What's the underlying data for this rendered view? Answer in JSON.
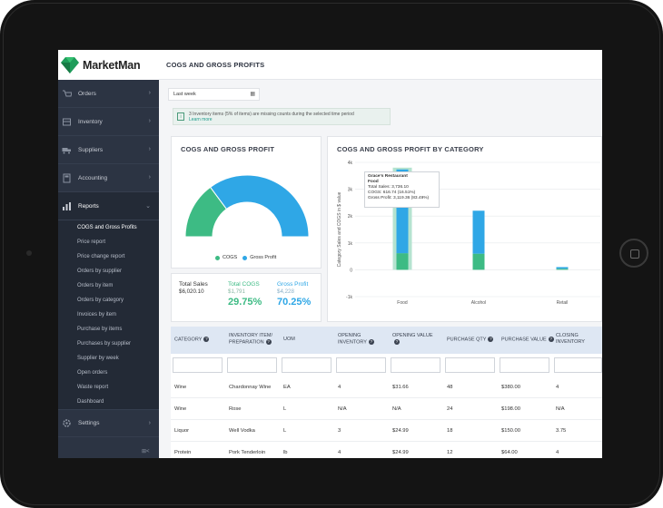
{
  "app": {
    "brand": "MarketMan",
    "page_title": "COGS AND GROSS PROFITS"
  },
  "colors": {
    "accent_green": "#3dbb84",
    "accent_blue": "#2fa7e6",
    "sidebar_bg": "#2c3443"
  },
  "sidebar": {
    "items": [
      {
        "label": "Orders",
        "icon": "orders-icon"
      },
      {
        "label": "Inventory",
        "icon": "inventory-icon"
      },
      {
        "label": "Suppliers",
        "icon": "truck-icon"
      },
      {
        "label": "Accounting",
        "icon": "calculator-icon"
      },
      {
        "label": "Reports",
        "icon": "bar-chart-icon"
      }
    ],
    "reports_sub": [
      "COGS and Gross Profits",
      "Price report",
      "Price change report",
      "Orders by supplier",
      "Orders by item",
      "Orders by category",
      "Invoices by item",
      "Purchase by items",
      "Purchases by supplier",
      "Supplier by week",
      "Open orders",
      "Waste report",
      "Dashboard"
    ],
    "settings_label": "Settings",
    "collapse_label": "⊞<"
  },
  "filters": {
    "date_range": "Last week"
  },
  "alert": {
    "message": "3 Inventory items (5% of items) are missing counts during the selected time period",
    "link": "Learn more"
  },
  "cogs_card": {
    "title": "COGS AND GROSS PROFIT",
    "legend": [
      {
        "label": "COGS",
        "color": "#3dbb84"
      },
      {
        "label": "Gross Profit",
        "color": "#2fa7e6"
      }
    ]
  },
  "totals": {
    "total_sales": {
      "label": "Total Sales",
      "value": "$6,020.10"
    },
    "total_cogs": {
      "label": "Total COGS",
      "value": "$1,791",
      "pct": "29.75%"
    },
    "gross_profit": {
      "label": "Gross Profit",
      "value": "$4,228",
      "pct": "70.25%"
    }
  },
  "category_card": {
    "title": "COGS AND GROSS PROFIT BY CATEGORY",
    "tooltip": {
      "restaurant": "Grace's Restaurant",
      "category": "Food",
      "lines": [
        "Total Sales: 3,736.10",
        "COGS: 616.74 (16.51%)",
        "Gross Profit: 3,119.36 (83.49%)"
      ]
    }
  },
  "chart_data": [
    {
      "type": "pie",
      "title": "COGS AND GROSS PROFIT",
      "labels": [
        "COGS",
        "Gross Profit"
      ],
      "values": [
        29.75,
        70.25
      ]
    },
    {
      "type": "bar",
      "title": "COGS AND GROSS PROFIT BY CATEGORY",
      "categories": [
        "Food",
        "Alcohol",
        "Retail"
      ],
      "ylabel": "Category Sales and COGS in $ value",
      "ylim": [
        -1000,
        4000
      ],
      "yticks": [
        "4k",
        "3k",
        "2k",
        "1k",
        "0",
        "-1k"
      ],
      "series": [
        {
          "name": "COGS",
          "values": [
            616.74,
            600,
            40
          ]
        },
        {
          "name": "Gross Profit",
          "values": [
            3119.36,
            1600,
            60
          ]
        }
      ]
    }
  ],
  "table": {
    "columns": [
      "CATEGORY",
      "INVENTORY ITEM/ PREPARATION",
      "UOM",
      "OPENING INVENTORY",
      "OPENING VALUE",
      "PURCHASE QTY",
      "PURCHASE VALUE",
      "CLOSING INVENTORY"
    ],
    "rows": [
      [
        "Wine",
        "Chardonnay Wine",
        "EA",
        "4",
        "$31.66",
        "48",
        "$380.00",
        "4"
      ],
      [
        "Wine",
        "Rose",
        "L",
        "N/A",
        "N/A",
        "24",
        "$198.00",
        "N/A"
      ],
      [
        "Liquor",
        "Well Vodka",
        "L",
        "3",
        "$24.99",
        "18",
        "$150.00",
        "3.75"
      ],
      [
        "Protein",
        "Pork Tenderloin",
        "lb",
        "4",
        "$24.99",
        "12",
        "$64.00",
        "4"
      ]
    ]
  }
}
